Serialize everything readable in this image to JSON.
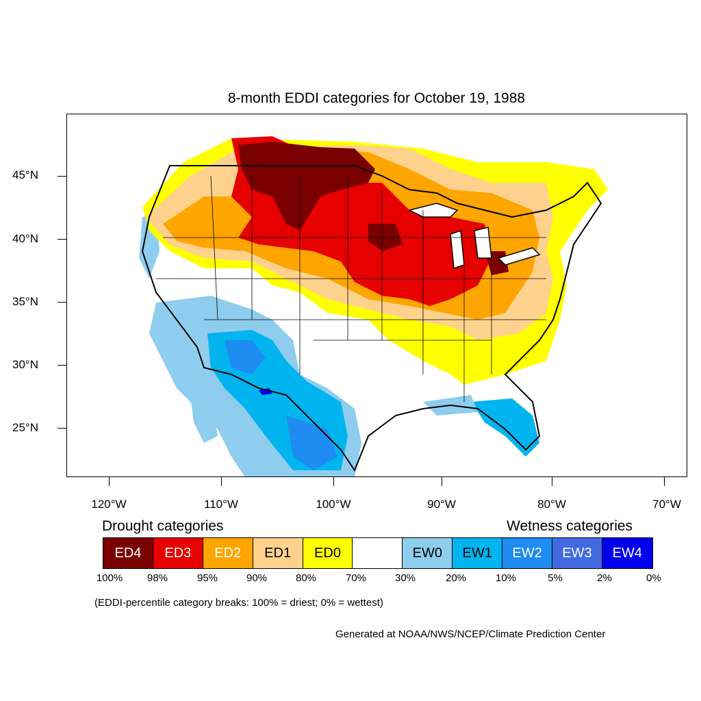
{
  "title": "8-month EDDI categories for October 19, 1988",
  "axes": {
    "lat_ticks": [
      "45°N",
      "40°N",
      "35°N",
      "30°N",
      "25°N"
    ],
    "lon_ticks": [
      "120°W",
      "110°W",
      "100°W",
      "90°W",
      "80°W",
      "70°W"
    ]
  },
  "legend": {
    "drought_heading": "Drought categories",
    "wetness_heading": "Wetness categories",
    "categories": [
      {
        "label": "ED4",
        "color": "#7a0000",
        "text_color": "#ffffff"
      },
      {
        "label": "ED3",
        "color": "#e60000",
        "text_color": "#ffffff"
      },
      {
        "label": "ED2",
        "color": "#ffa500",
        "text_color": "#ffffff"
      },
      {
        "label": "ED1",
        "color": "#fed28d",
        "text_color": "#000000"
      },
      {
        "label": "ED0",
        "color": "#ffff00",
        "text_color": "#000000"
      },
      {
        "label": "",
        "color": "#ffffff",
        "text_color": "#000000"
      },
      {
        "label": "EW0",
        "color": "#8ecdee",
        "text_color": "#000000"
      },
      {
        "label": "EW1",
        "color": "#00b4f0",
        "text_color": "#000000"
      },
      {
        "label": "EW2",
        "color": "#1e8cf0",
        "text_color": "#ffffff"
      },
      {
        "label": "EW3",
        "color": "#4169e1",
        "text_color": "#ffffff"
      },
      {
        "label": "EW4",
        "color": "#0000ee",
        "text_color": "#ffffff"
      }
    ],
    "breaks": [
      "100%",
      "98%",
      "95%",
      "90%",
      "80%",
      "70%",
      "30%",
      "20%",
      "10%",
      "5%",
      "2%",
      "0%"
    ]
  },
  "note": "(EDDI-percentile category breaks: 100% = driest; 0% = wettest)",
  "credit": "Generated at NOAA/NWS/NCEP/Climate Prediction Center"
}
